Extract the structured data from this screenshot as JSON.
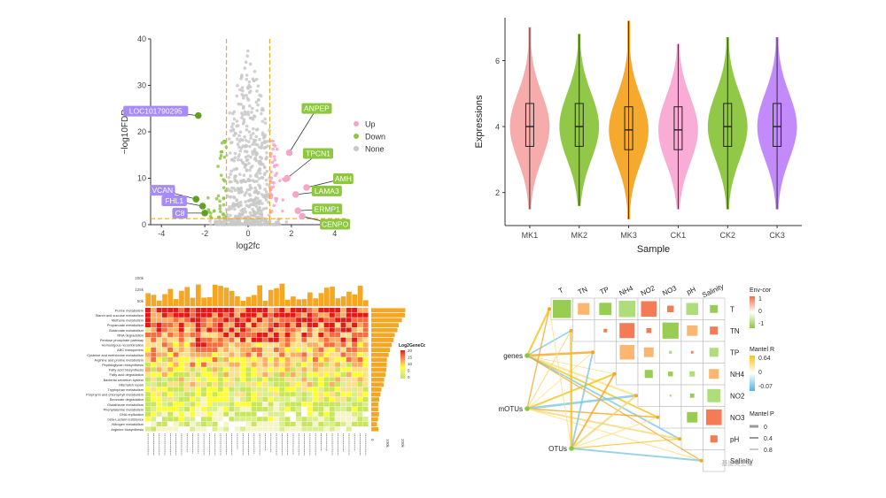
{
  "chart_data": [
    {
      "type": "scatter",
      "xlabel": "log2fc",
      "ylabel": "−log10FDR",
      "xlim": [
        -4.5,
        4.5
      ],
      "ylim": [
        0,
        40
      ],
      "x_ticks": [
        "-4",
        "-2",
        "0",
        "2",
        "4"
      ],
      "y_ticks": [
        "0",
        "10",
        "20",
        "30",
        "40"
      ],
      "thresholds": {
        "x": [
          -1,
          1
        ],
        "y": 1.3
      },
      "legend": {
        "position": "right",
        "entries": [
          "Up",
          "Down",
          "None"
        ]
      },
      "series_colors": {
        "Up": "#f4a6c6",
        "Down": "#8dc63f",
        "None": "#c8c8c8"
      },
      "labeled_genes": [
        {
          "label": "LOC101790295",
          "x": -2.3,
          "y": 23.5,
          "group": "Down"
        },
        {
          "label": "VCAN",
          "x": -2.4,
          "y": 5.5,
          "group": "Down"
        },
        {
          "label": "FHL1",
          "x": -2.1,
          "y": 4.0,
          "group": "Down"
        },
        {
          "label": "C8",
          "x": -2.0,
          "y": 2.5,
          "group": "Down"
        },
        {
          "label": "ANPEP",
          "x": 1.9,
          "y": 15.5,
          "group": "Up"
        },
        {
          "label": "TPCN1",
          "x": 1.8,
          "y": 10.0,
          "group": "Up"
        },
        {
          "label": "AMH",
          "x": 2.7,
          "y": 8.0,
          "group": "Up"
        },
        {
          "label": "LAMA3",
          "x": 2.2,
          "y": 6.5,
          "group": "Up"
        },
        {
          "label": "ERMP1",
          "x": 2.3,
          "y": 3.0,
          "group": "Up"
        },
        {
          "label": "CENPO",
          "x": 2.5,
          "y": 1.8,
          "group": "Up"
        }
      ]
    },
    {
      "type": "violin",
      "xlabel": "Sample",
      "ylabel": "Expressions",
      "categories": [
        "MK1",
        "MK2",
        "MK3",
        "CK1",
        "CK2",
        "CK3"
      ],
      "colors": [
        "#f7a8a8",
        "#8dc63f",
        "#f5a623",
        "#f9a8d4",
        "#8dc63f",
        "#c084fc"
      ],
      "y_ticks": [
        "2",
        "4",
        "6"
      ],
      "ylim": [
        1,
        7.3
      ],
      "stats": [
        {
          "min": 1.5,
          "q1": 3.4,
          "median": 4.0,
          "q3": 4.7,
          "max": 7.0
        },
        {
          "min": 1.6,
          "q1": 3.4,
          "median": 4.0,
          "q3": 4.7,
          "max": 6.8
        },
        {
          "min": 1.2,
          "q1": 3.3,
          "median": 3.9,
          "q3": 4.6,
          "max": 7.2
        },
        {
          "min": 1.5,
          "q1": 3.3,
          "median": 3.9,
          "q3": 4.6,
          "max": 6.5
        },
        {
          "min": 1.5,
          "q1": 3.4,
          "median": 4.0,
          "q3": 4.7,
          "max": 6.7
        },
        {
          "min": 1.5,
          "q1": 3.4,
          "median": 4.0,
          "q3": 4.7,
          "max": 6.7
        }
      ]
    },
    {
      "type": "heatmap",
      "legend_title": "Log2GeneCount",
      "legend_ticks": [
        "20",
        "15",
        "10",
        "5",
        "0"
      ],
      "top_ticks": [
        "200k",
        "125k",
        "50k"
      ],
      "right_ticks": [
        "0",
        "100k",
        "200k"
      ],
      "rows": [
        "Purine metabolism",
        "Starch and sucrose metabolism",
        "Methane metabolism",
        "Propanoate metabolism",
        "Butanoate metabolism",
        "RNA degradation",
        "Pentose phosphate pathway",
        "Homologous recombination",
        "ABC transporters",
        "Cysteine and methionine metabolism",
        "Arginine and proline metabolism",
        "Peptidoglycan biosynthesis",
        "Fatty acid biosynthesis",
        "Fatty acid degradation",
        "Bacterial secretion system",
        "Mismatch repair",
        "Tryptophan metabolism",
        "Porphyrin and chlorophyll metabolism",
        "Benzoate degradation",
        "Glutathione metabolism",
        "Phenylalanine metabolism",
        "DNA replication",
        "beta-Lactam resistance",
        "Nitrogen metabolism",
        "Arginine biosynthesis"
      ]
    },
    {
      "type": "heatmap",
      "variables": [
        "T",
        "TN",
        "TP",
        "NH4",
        "NO2",
        "NO3",
        "pH",
        "Salinity"
      ],
      "nodes": [
        "genes",
        "mOTUs",
        "OTUs"
      ],
      "legend_envcor": {
        "title": "Env-cor",
        "ticks": [
          "1",
          "0",
          "-1"
        ]
      },
      "legend_mantel_r": {
        "title": "Mantel R",
        "ticks": [
          "0.64",
          "0",
          "-0.07"
        ]
      },
      "legend_mantel_p": {
        "title": "Mantel P",
        "ticks": [
          "0",
          "0.4",
          "0.8"
        ]
      },
      "watermark": "·基迪奥生物"
    }
  ]
}
